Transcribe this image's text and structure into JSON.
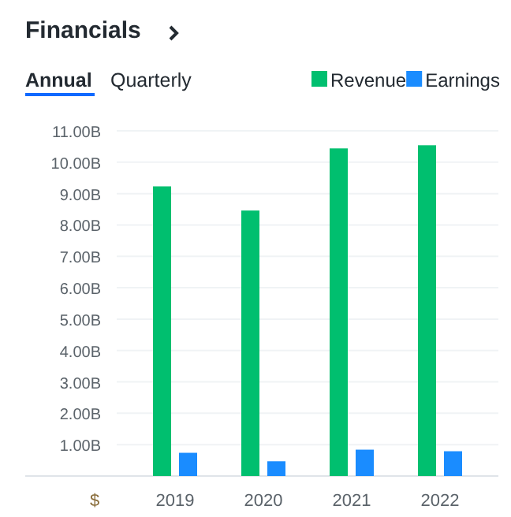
{
  "chart_data": {
    "type": "bar",
    "title": "Financials",
    "annotations": [
      "Annual",
      "Quarterly"
    ],
    "ylabel": "$",
    "categories": [
      "2019",
      "2020",
      "2021",
      "2022"
    ],
    "series": [
      {
        "name": "Revenue",
        "color": "#00bf6f",
        "values": [
          9.23,
          8.46,
          10.44,
          10.54
        ]
      },
      {
        "name": "Earnings",
        "color": "#1a8cff",
        "values": [
          0.74,
          0.47,
          0.84,
          0.79
        ]
      }
    ],
    "ylim": [
      0,
      11
    ],
    "yticks": [
      {
        "value": 1,
        "label": "1.00B"
      },
      {
        "value": 2,
        "label": "2.00B"
      },
      {
        "value": 3,
        "label": "3.00B"
      },
      {
        "value": 4,
        "label": "4.00B"
      },
      {
        "value": 5,
        "label": "5.00B"
      },
      {
        "value": 6,
        "label": "6.00B"
      },
      {
        "value": 7,
        "label": "7.00B"
      },
      {
        "value": 8,
        "label": "8.00B"
      },
      {
        "value": 9,
        "label": "9.00B"
      },
      {
        "value": 10,
        "label": "10.00B"
      },
      {
        "value": 11,
        "label": "11.00B"
      }
    ],
    "grid": "y",
    "legend": "top right"
  }
}
